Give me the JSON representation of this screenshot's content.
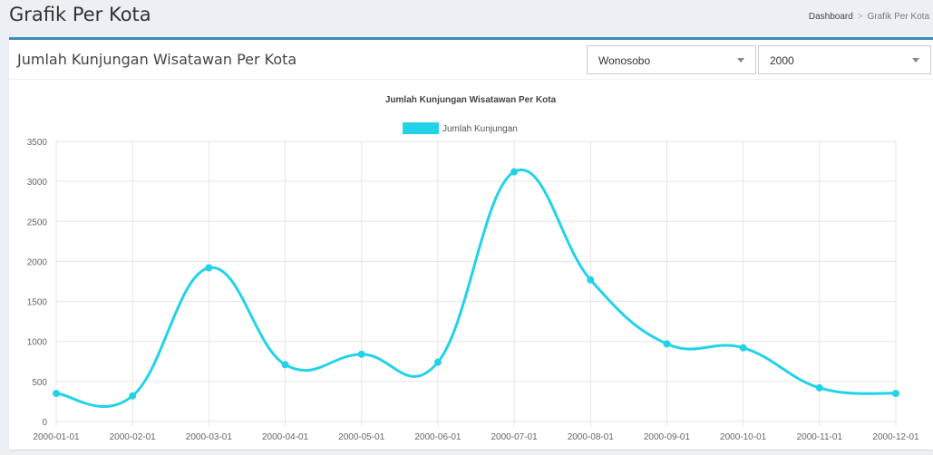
{
  "page": {
    "title": "Grafik Per Kota",
    "breadcrumb": [
      "Dashboard",
      "Grafik Per Kota"
    ]
  },
  "box": {
    "title": "Jumlah Kunjungan Wisatawan Per Kota"
  },
  "filters": {
    "city": "Wonosobo",
    "year": "2000"
  },
  "colors": {
    "accent": "#3c8dbc",
    "series": "#22d3e8",
    "grid": "#e6e6e6"
  },
  "chart_data": {
    "type": "line",
    "title": "Jumlah Kunjungan Wisatawan Per Kota",
    "xlabel": "",
    "ylabel": "",
    "ylim": [
      0,
      3500
    ],
    "yticks": [
      0,
      500,
      1000,
      1500,
      2000,
      2500,
      3000,
      3500
    ],
    "legend_position": "top",
    "grid": true,
    "smooth": true,
    "x": [
      "2000-01-01",
      "2000-02-01",
      "2000-03-01",
      "2000-04-01",
      "2000-05-01",
      "2000-06-01",
      "2000-07-01",
      "2000-08-01",
      "2000-09-01",
      "2000-10-01",
      "2000-11-01",
      "2000-12-01"
    ],
    "series": [
      {
        "name": "Jumlah Kunjungan",
        "values": [
          350,
          320,
          1920,
          710,
          840,
          740,
          3120,
          1770,
          970,
          920,
          420,
          350
        ]
      }
    ]
  }
}
